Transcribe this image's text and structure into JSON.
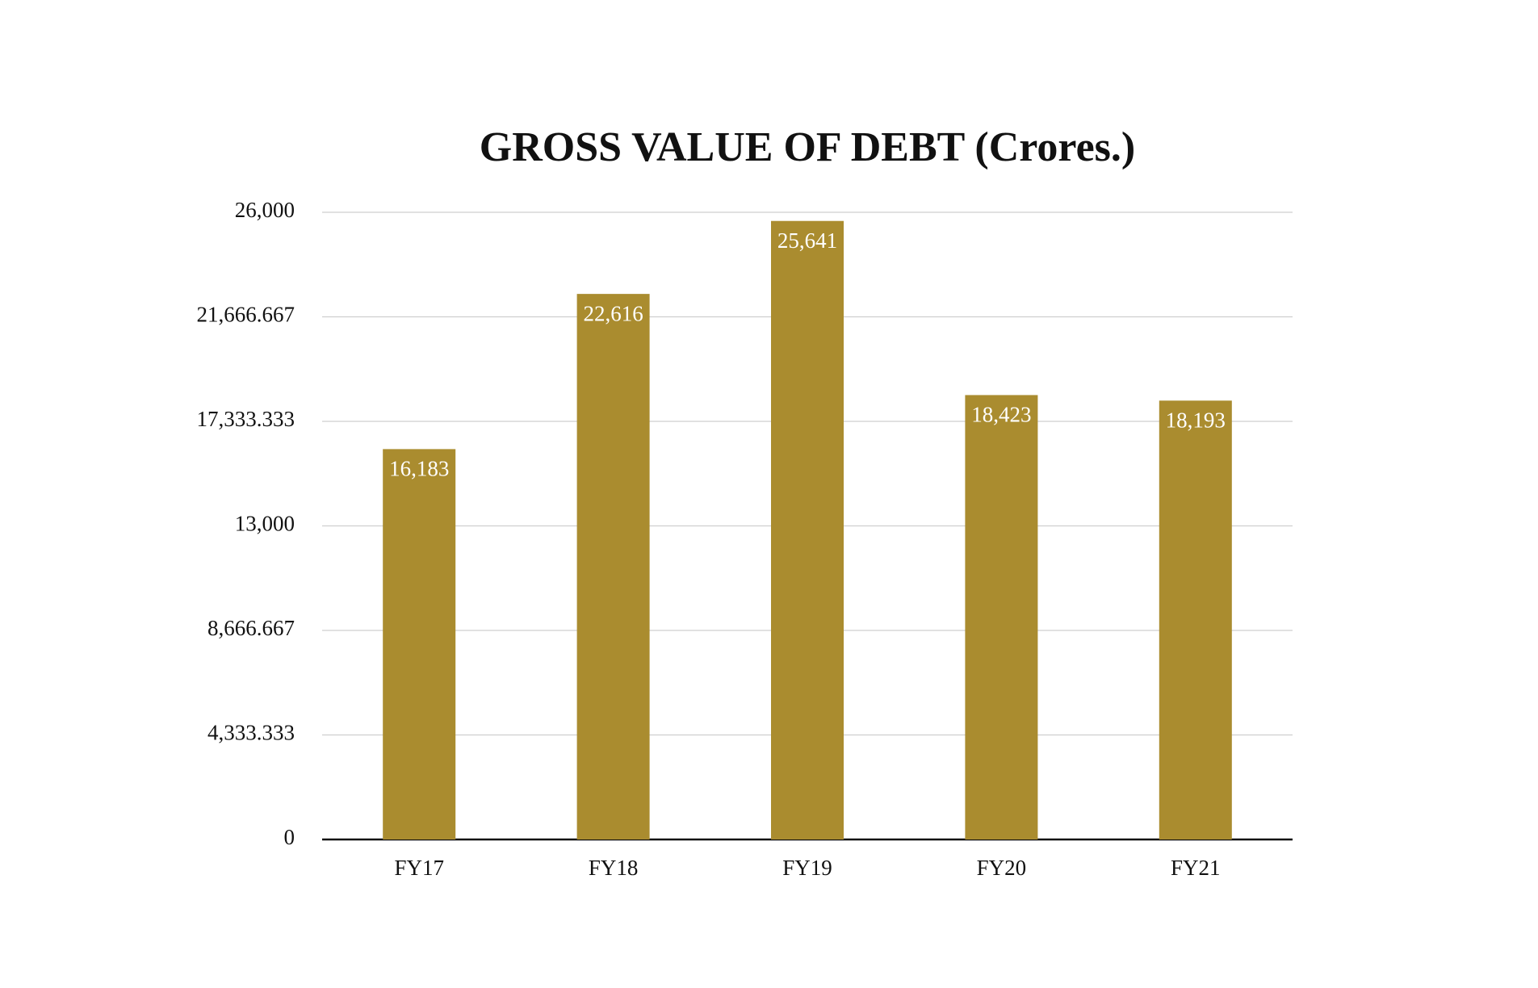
{
  "chart_data": {
    "type": "bar",
    "title": "GROSS VALUE OF DEBT (Crores.)",
    "categories": [
      "FY17",
      "FY18",
      "FY19",
      "FY20",
      "FY21"
    ],
    "values": [
      16183,
      22616,
      25641,
      18423,
      18193
    ],
    "value_labels": [
      "16,183",
      "22,616",
      "25,641",
      "18,423",
      "18,193"
    ],
    "color": "#aa8c2f",
    "ylim": [
      0,
      26000
    ],
    "yticks": [
      0,
      {
        "value": 4333.333,
        "label": "4,333.333"
      },
      {
        "value": 8666.667,
        "label": "8,666.667"
      },
      {
        "value": 13000,
        "label": "13,000"
      },
      {
        "value": 17333.333,
        "label": "17,333.333"
      },
      {
        "value": 21666.667,
        "label": "21,666.667"
      },
      {
        "value": 26000,
        "label": "26,000"
      }
    ],
    "grid": true
  }
}
